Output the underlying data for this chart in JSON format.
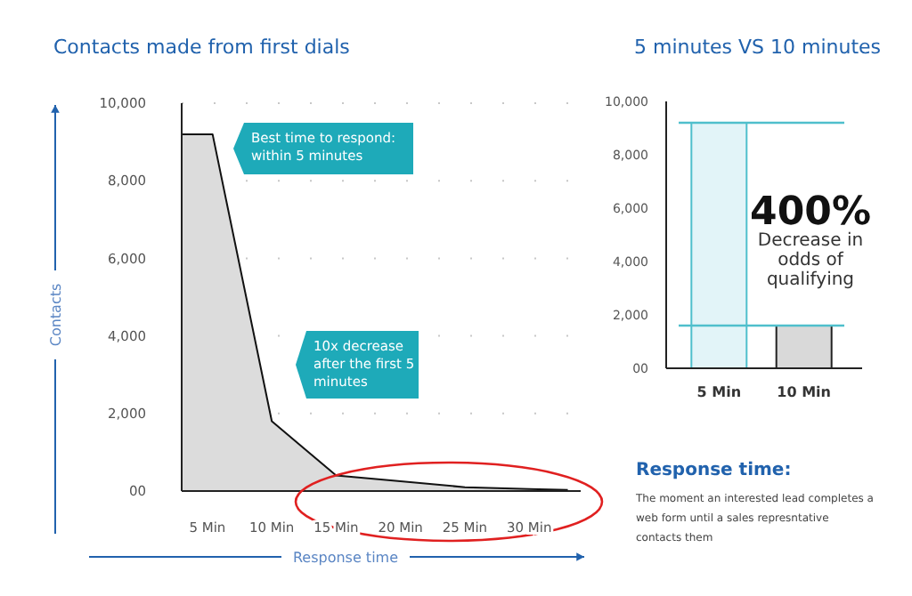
{
  "chart_data": [
    {
      "type": "area",
      "title": "Contacts made from first dials",
      "xlabel": "Response time",
      "ylabel": "Contacts",
      "x": [
        3,
        5.4,
        10,
        15,
        20,
        25,
        30,
        33
      ],
      "series": [
        {
          "color": "#dcdcdc",
          "values": [
            9200,
            9200,
            1800,
            400,
            250,
            100,
            50,
            30
          ]
        }
      ],
      "xlim": [
        3,
        34
      ],
      "xticks": [
        {
          "value": 5,
          "label": "5 Min"
        },
        {
          "value": 10,
          "label": "10 Min"
        },
        {
          "value": 15,
          "label": "15 Min"
        },
        {
          "value": 20,
          "label": "20 Min"
        },
        {
          "value": 25,
          "label": "25 Min"
        },
        {
          "value": 30,
          "label": "30 Min"
        }
      ],
      "ylim": [
        0,
        10000
      ],
      "yticks": [
        {
          "value": 0,
          "label": "00"
        },
        {
          "value": 2000,
          "label": "2,000"
        },
        {
          "value": 4000,
          "label": "4,000"
        },
        {
          "value": 6000,
          "label": "6,000"
        },
        {
          "value": 8000,
          "label": "8,000"
        },
        {
          "value": 10000,
          "label": "10,000"
        }
      ],
      "grid": "y",
      "annotations": [
        "Best time to respond: within 5 minutes",
        "10x decrease after the first 5 minutes"
      ]
    },
    {
      "type": "bar",
      "title": "5 minutes VS 10 minutes",
      "categories": [
        "5 Min",
        "10 Min"
      ],
      "values": [
        9200,
        1600
      ],
      "colors": [
        "#e2f4f8",
        "#d9d9d9"
      ],
      "ylim": [
        0,
        10000
      ],
      "yticks": [
        {
          "value": 0,
          "label": "00"
        },
        {
          "value": 2000,
          "label": "2,000"
        },
        {
          "value": 4000,
          "label": "4,000"
        },
        {
          "value": 6000,
          "label": "6,000"
        },
        {
          "value": 8000,
          "label": "8,000"
        },
        {
          "value": 10000,
          "label": "10,000"
        }
      ],
      "ref_lines": [
        {
          "axis": "y",
          "value": 9200,
          "color": "#4fbfcc"
        },
        {
          "axis": "y",
          "value": 1600,
          "color": "#4fbfcc"
        }
      ],
      "annotations": [
        "400%",
        "Decrease in odds of qualifying",
        "Response time:",
        "The moment an interested lead completes a web form until a sales represntative contacts them"
      ]
    }
  ]
}
